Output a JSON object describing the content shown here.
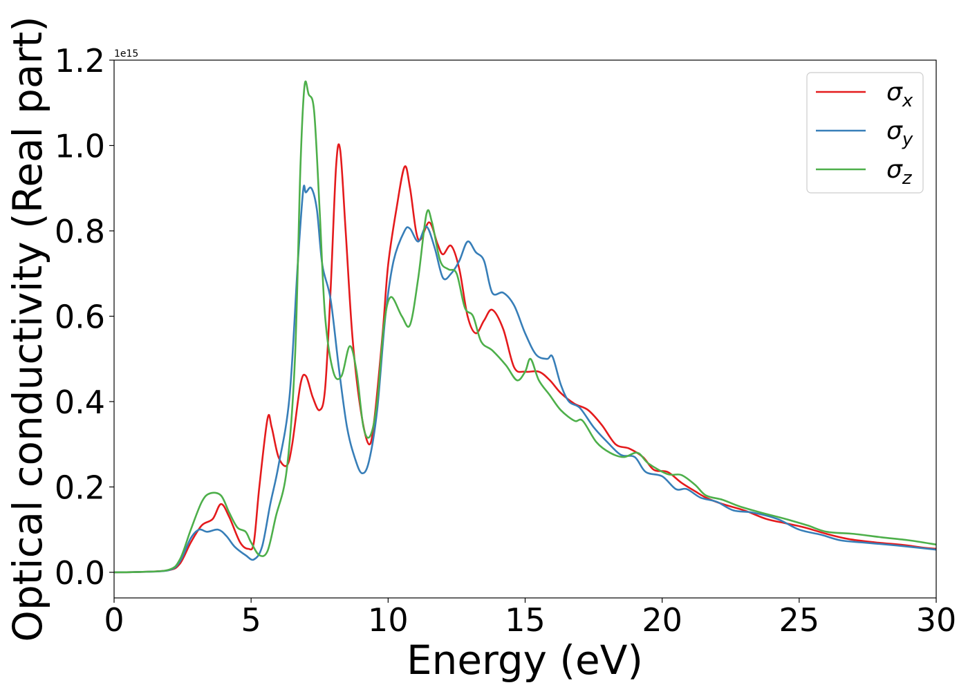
{
  "chart_data": {
    "type": "line",
    "title": "",
    "xlabel": "Energy (eV)",
    "ylabel": "Optical conductivity (Real part)",
    "y_offset_text": "1e15",
    "xlim": [
      0,
      30
    ],
    "ylim": [
      -0.06,
      1.2
    ],
    "x_ticks": [
      0,
      5,
      10,
      15,
      20,
      25,
      30
    ],
    "x_tick_labels": [
      "0",
      "5",
      "10",
      "15",
      "20",
      "25",
      "30"
    ],
    "y_ticks": [
      0.0,
      0.2,
      0.4,
      0.6,
      0.8,
      1.0,
      1.2
    ],
    "y_tick_labels": [
      "0.0",
      "0.2",
      "0.4",
      "0.6",
      "0.8",
      "1.0",
      "1.2"
    ],
    "grid": false,
    "legend_position": "top-right",
    "series": [
      {
        "name": "σx",
        "symbol": "σ",
        "subscript": "x",
        "color": "#e41a1c",
        "points": [
          [
            0,
            0.0
          ],
          [
            1.0,
            0.001
          ],
          [
            2.0,
            0.005
          ],
          [
            2.4,
            0.02
          ],
          [
            2.8,
            0.07
          ],
          [
            3.2,
            0.11
          ],
          [
            3.6,
            0.125
          ],
          [
            3.9,
            0.16
          ],
          [
            4.2,
            0.13
          ],
          [
            4.6,
            0.07
          ],
          [
            4.9,
            0.055
          ],
          [
            5.1,
            0.07
          ],
          [
            5.3,
            0.2
          ],
          [
            5.6,
            0.36
          ],
          [
            5.75,
            0.34
          ],
          [
            6.0,
            0.27
          ],
          [
            6.3,
            0.25
          ],
          [
            6.5,
            0.3
          ],
          [
            6.8,
            0.44
          ],
          [
            7.0,
            0.46
          ],
          [
            7.25,
            0.41
          ],
          [
            7.5,
            0.38
          ],
          [
            7.7,
            0.43
          ],
          [
            7.9,
            0.66
          ],
          [
            8.1,
            0.95
          ],
          [
            8.25,
            0.99
          ],
          [
            8.45,
            0.8
          ],
          [
            8.7,
            0.55
          ],
          [
            9.0,
            0.38
          ],
          [
            9.3,
            0.3
          ],
          [
            9.5,
            0.36
          ],
          [
            9.8,
            0.56
          ],
          [
            10.0,
            0.72
          ],
          [
            10.3,
            0.85
          ],
          [
            10.6,
            0.95
          ],
          [
            10.8,
            0.9
          ],
          [
            11.1,
            0.78
          ],
          [
            11.5,
            0.82
          ],
          [
            11.8,
            0.77
          ],
          [
            12.0,
            0.745
          ],
          [
            12.3,
            0.765
          ],
          [
            12.6,
            0.71
          ],
          [
            12.9,
            0.6
          ],
          [
            13.2,
            0.56
          ],
          [
            13.5,
            0.59
          ],
          [
            13.8,
            0.615
          ],
          [
            14.2,
            0.57
          ],
          [
            14.6,
            0.48
          ],
          [
            15.0,
            0.47
          ],
          [
            15.5,
            0.47
          ],
          [
            15.9,
            0.45
          ],
          [
            16.3,
            0.42
          ],
          [
            16.8,
            0.395
          ],
          [
            17.3,
            0.38
          ],
          [
            17.8,
            0.345
          ],
          [
            18.3,
            0.3
          ],
          [
            18.8,
            0.29
          ],
          [
            19.3,
            0.27
          ],
          [
            19.7,
            0.24
          ],
          [
            20.2,
            0.235
          ],
          [
            20.7,
            0.21
          ],
          [
            21.2,
            0.19
          ],
          [
            21.6,
            0.175
          ],
          [
            22.2,
            0.16
          ],
          [
            23.0,
            0.145
          ],
          [
            23.8,
            0.125
          ],
          [
            24.5,
            0.115
          ],
          [
            25.2,
            0.105
          ],
          [
            26.0,
            0.09
          ],
          [
            26.8,
            0.078
          ],
          [
            27.8,
            0.07
          ],
          [
            28.8,
            0.064
          ],
          [
            29.5,
            0.058
          ],
          [
            30.0,
            0.055
          ]
        ]
      },
      {
        "name": "σy",
        "symbol": "σ",
        "subscript": "y",
        "color": "#377eb8",
        "points": [
          [
            0,
            0.0
          ],
          [
            1.0,
            0.001
          ],
          [
            2.0,
            0.005
          ],
          [
            2.4,
            0.025
          ],
          [
            2.8,
            0.08
          ],
          [
            3.1,
            0.1
          ],
          [
            3.4,
            0.095
          ],
          [
            3.8,
            0.1
          ],
          [
            4.1,
            0.085
          ],
          [
            4.4,
            0.06
          ],
          [
            4.8,
            0.04
          ],
          [
            5.1,
            0.03
          ],
          [
            5.4,
            0.06
          ],
          [
            5.7,
            0.16
          ],
          [
            6.0,
            0.25
          ],
          [
            6.4,
            0.41
          ],
          [
            6.7,
            0.72
          ],
          [
            6.9,
            0.895
          ],
          [
            7.0,
            0.89
          ],
          [
            7.2,
            0.9
          ],
          [
            7.4,
            0.85
          ],
          [
            7.6,
            0.72
          ],
          [
            7.9,
            0.64
          ],
          [
            8.2,
            0.48
          ],
          [
            8.5,
            0.34
          ],
          [
            8.8,
            0.265
          ],
          [
            9.05,
            0.232
          ],
          [
            9.3,
            0.26
          ],
          [
            9.6,
            0.38
          ],
          [
            9.9,
            0.6
          ],
          [
            10.2,
            0.73
          ],
          [
            10.6,
            0.8
          ],
          [
            10.8,
            0.805
          ],
          [
            11.1,
            0.775
          ],
          [
            11.4,
            0.81
          ],
          [
            11.7,
            0.76
          ],
          [
            12.0,
            0.69
          ],
          [
            12.3,
            0.7
          ],
          [
            12.6,
            0.73
          ],
          [
            12.9,
            0.775
          ],
          [
            13.2,
            0.75
          ],
          [
            13.5,
            0.73
          ],
          [
            13.8,
            0.655
          ],
          [
            14.2,
            0.655
          ],
          [
            14.6,
            0.625
          ],
          [
            15.0,
            0.56
          ],
          [
            15.4,
            0.51
          ],
          [
            15.8,
            0.5
          ],
          [
            16.0,
            0.505
          ],
          [
            16.3,
            0.44
          ],
          [
            16.6,
            0.4
          ],
          [
            17.0,
            0.385
          ],
          [
            17.5,
            0.34
          ],
          [
            18.0,
            0.305
          ],
          [
            18.5,
            0.275
          ],
          [
            19.0,
            0.27
          ],
          [
            19.4,
            0.235
          ],
          [
            20.0,
            0.225
          ],
          [
            20.5,
            0.195
          ],
          [
            20.9,
            0.195
          ],
          [
            21.4,
            0.175
          ],
          [
            22.0,
            0.165
          ],
          [
            22.6,
            0.145
          ],
          [
            23.3,
            0.14
          ],
          [
            24.2,
            0.125
          ],
          [
            25.0,
            0.1
          ],
          [
            25.8,
            0.088
          ],
          [
            26.5,
            0.075
          ],
          [
            27.3,
            0.07
          ],
          [
            28.2,
            0.065
          ],
          [
            29.0,
            0.06
          ],
          [
            30.0,
            0.053
          ]
        ]
      },
      {
        "name": "σz",
        "symbol": "σ",
        "subscript": "z",
        "color": "#4daf4a",
        "points": [
          [
            0,
            0.0
          ],
          [
            1.0,
            0.001
          ],
          [
            2.0,
            0.006
          ],
          [
            2.4,
            0.03
          ],
          [
            2.8,
            0.1
          ],
          [
            3.2,
            0.165
          ],
          [
            3.5,
            0.185
          ],
          [
            3.9,
            0.18
          ],
          [
            4.2,
            0.14
          ],
          [
            4.5,
            0.105
          ],
          [
            4.8,
            0.095
          ],
          [
            5.0,
            0.07
          ],
          [
            5.3,
            0.04
          ],
          [
            5.6,
            0.05
          ],
          [
            5.9,
            0.13
          ],
          [
            6.3,
            0.24
          ],
          [
            6.6,
            0.5
          ],
          [
            6.8,
            0.95
          ],
          [
            6.95,
            1.14
          ],
          [
            7.1,
            1.12
          ],
          [
            7.3,
            1.08
          ],
          [
            7.5,
            0.85
          ],
          [
            7.7,
            0.6
          ],
          [
            8.0,
            0.47
          ],
          [
            8.3,
            0.46
          ],
          [
            8.6,
            0.53
          ],
          [
            8.85,
            0.47
          ],
          [
            9.1,
            0.34
          ],
          [
            9.35,
            0.32
          ],
          [
            9.6,
            0.4
          ],
          [
            9.85,
            0.58
          ],
          [
            10.1,
            0.645
          ],
          [
            10.5,
            0.6
          ],
          [
            10.8,
            0.58
          ],
          [
            11.1,
            0.69
          ],
          [
            11.4,
            0.84
          ],
          [
            11.6,
            0.82
          ],
          [
            11.9,
            0.73
          ],
          [
            12.2,
            0.71
          ],
          [
            12.5,
            0.7
          ],
          [
            12.8,
            0.62
          ],
          [
            13.1,
            0.6
          ],
          [
            13.4,
            0.54
          ],
          [
            13.8,
            0.52
          ],
          [
            14.3,
            0.485
          ],
          [
            14.7,
            0.45
          ],
          [
            15.0,
            0.47
          ],
          [
            15.2,
            0.5
          ],
          [
            15.5,
            0.45
          ],
          [
            15.9,
            0.415
          ],
          [
            16.3,
            0.38
          ],
          [
            16.8,
            0.355
          ],
          [
            17.1,
            0.355
          ],
          [
            17.6,
            0.305
          ],
          [
            18.1,
            0.28
          ],
          [
            18.6,
            0.27
          ],
          [
            19.1,
            0.28
          ],
          [
            19.5,
            0.255
          ],
          [
            20.2,
            0.23
          ],
          [
            20.7,
            0.228
          ],
          [
            21.2,
            0.205
          ],
          [
            21.6,
            0.18
          ],
          [
            22.2,
            0.17
          ],
          [
            22.8,
            0.155
          ],
          [
            23.6,
            0.14
          ],
          [
            24.5,
            0.125
          ],
          [
            25.3,
            0.11
          ],
          [
            26.0,
            0.095
          ],
          [
            27.0,
            0.09
          ],
          [
            28.0,
            0.082
          ],
          [
            29.0,
            0.075
          ],
          [
            30.0,
            0.065
          ]
        ]
      }
    ]
  }
}
